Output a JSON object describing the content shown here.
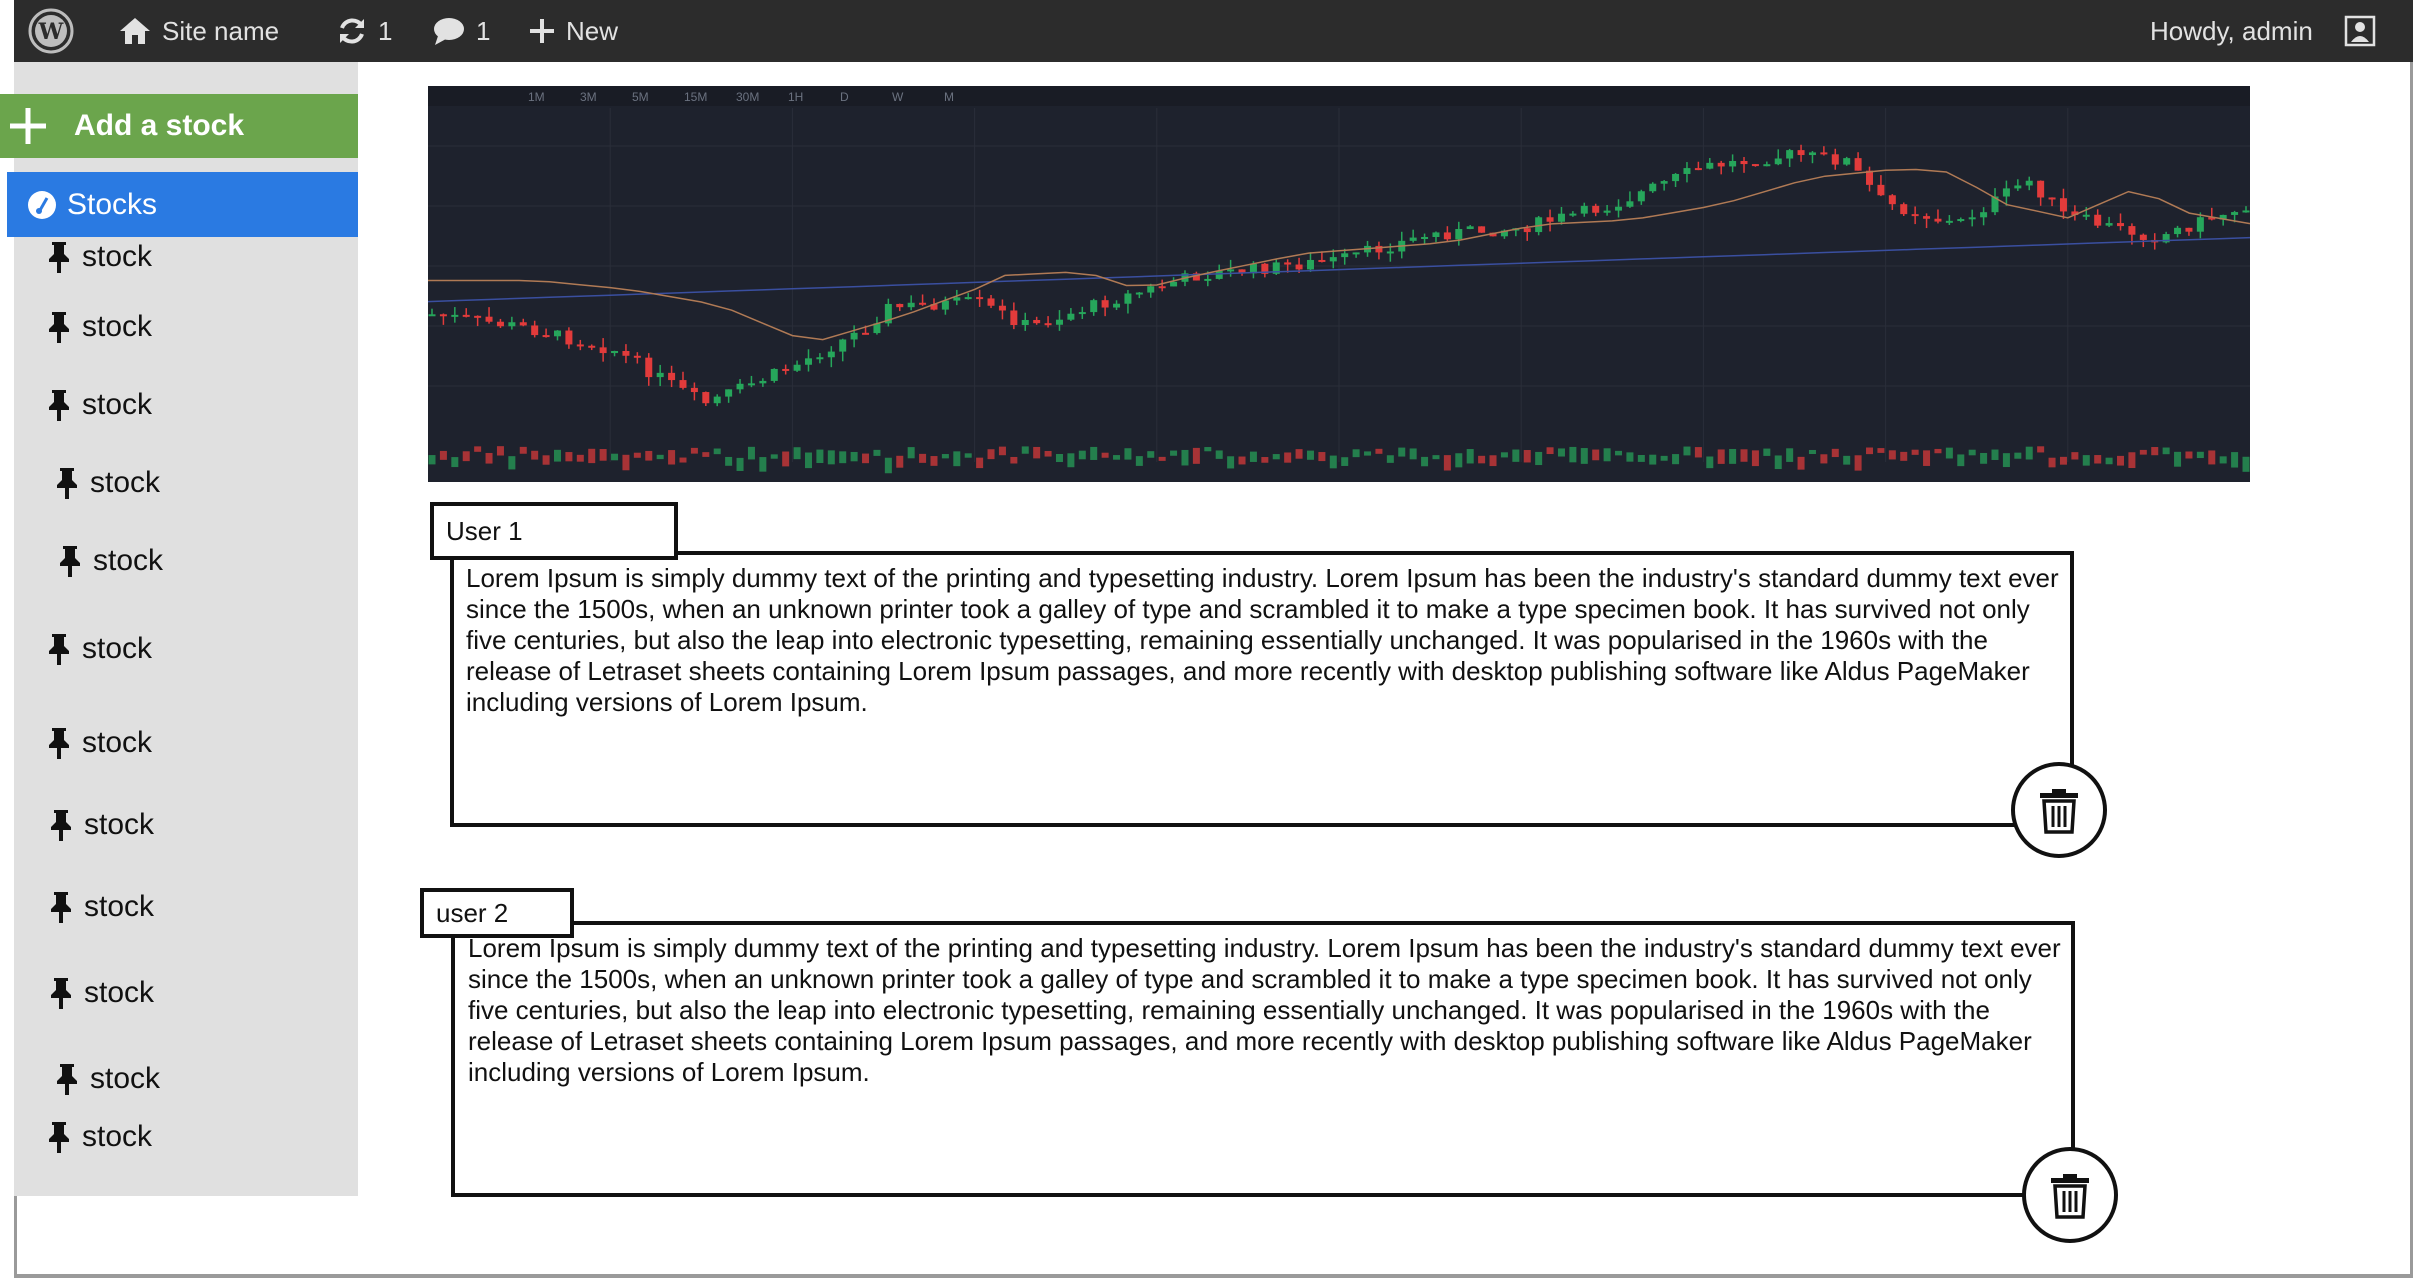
{
  "admin_bar": {
    "site_name": "Site name",
    "updates_count": "1",
    "comments_count": "1",
    "new_label": "New",
    "greeting": "Howdy, admin"
  },
  "sidebar": {
    "add_button_label": "Add a stock",
    "section_title": "Stocks",
    "items": [
      "stock",
      "stock",
      "stock",
      "stock",
      "stock",
      "stock",
      "stock",
      "stock",
      "stock",
      "stock",
      "stock",
      "stock"
    ]
  },
  "chart": {
    "timeframes": [
      "1M",
      "3M",
      "5M",
      "15M",
      "30M",
      "1H",
      "D",
      "W",
      "M"
    ],
    "colors": {
      "background": "#1e222d",
      "up": "#26a65b",
      "down": "#e23b3b",
      "ma_slow": "#3a4fa0",
      "ma_fast": "#b07a55"
    }
  },
  "comments": [
    {
      "user": "User 1",
      "text": "Lorem Ipsum is simply dummy text of the printing and typesetting industry. Lorem Ipsum has been the industry's standard dummy text ever since the 1500s, when an unknown printer took a galley of type and scrambled it to make a type specimen book. It has survived not only five centuries, but also the leap into electronic typesetting, remaining essentially unchanged. It was popularised in the 1960s with the release of Letraset sheets containing Lorem Ipsum passages, and more recently with desktop publishing software like Aldus PageMaker including versions of Lorem Ipsum."
    },
    {
      "user": "user 2",
      "text": "Lorem Ipsum is simply dummy text of the printing and typesetting industry. Lorem Ipsum has been the industry's standard dummy text ever since the 1500s, when an unknown printer took a galley of type and scrambled it to make a type specimen book. It has survived not only five centuries, but also the leap into electronic typesetting, remaining essentially unchanged. It was popularised in the 1960s with the release of Letraset sheets containing Lorem Ipsum passages, and more recently with desktop publishing software like Aldus PageMaker including versions of Lorem Ipsum."
    }
  ],
  "icons": {
    "logo": "wordpress-logo-icon",
    "home": "home-icon",
    "updates": "refresh-icon",
    "comments": "comment-bubble-icon",
    "new": "plus-icon",
    "avatar": "user-avatar-icon",
    "pin": "pushpin-icon",
    "stocks": "gauge-icon",
    "delete": "trash-icon"
  }
}
